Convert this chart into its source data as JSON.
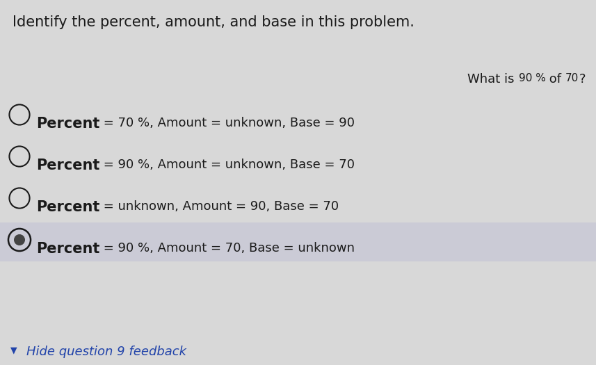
{
  "title": "Identify the percent, amount, and base in this problem.",
  "question_parts": [
    {
      "text": "What is ",
      "size": 13,
      "weight": "normal"
    },
    {
      "text": "90 %",
      "size": 11,
      "weight": "normal"
    },
    {
      "text": " of ",
      "size": 13,
      "weight": "normal"
    },
    {
      "text": "70",
      "size": 11,
      "weight": "normal"
    },
    {
      "text": "?",
      "size": 13,
      "weight": "normal"
    }
  ],
  "options": [
    {
      "label": "Percent",
      "rest": " = 70 %, Amount = unknown, Base = 90",
      "selected": false
    },
    {
      "label": "Percent",
      "rest": " = 90 %, Amount = unknown, Base = 70",
      "selected": false
    },
    {
      "label": "Percent",
      "rest": " = unknown, Amount = 90, Base = 70",
      "selected": false
    },
    {
      "label": "Percent",
      "rest": " = 90 %, Amount = 70, Base = unknown",
      "selected": true
    }
  ],
  "feedback_text": "Hide question 9 feedback",
  "bg_color": "#d8d8d8",
  "selected_bg": "#cbcbd6",
  "text_color": "#1a1a1a",
  "feedback_color": "#2244aa",
  "title_fontsize": 15,
  "option_label_fontsize": 15,
  "option_rest_fontsize": 13,
  "feedback_fontsize": 13,
  "figwidth": 8.57,
  "figheight": 5.25
}
